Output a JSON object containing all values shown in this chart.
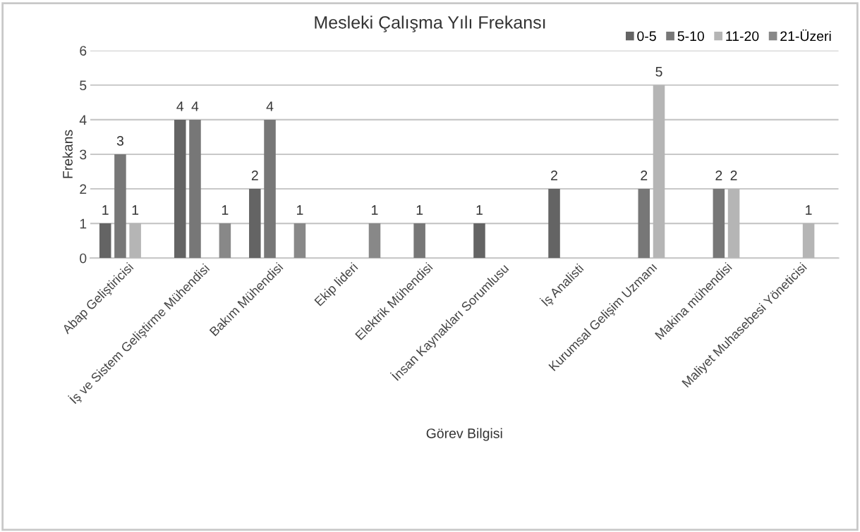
{
  "chart_data": {
    "type": "bar",
    "title": "Mesleki Çalışma Yılı Frekansı",
    "xlabel": "Görev Bilgisi",
    "ylabel": "Frekans",
    "categories": [
      "Abap Geliştiricisi",
      "İş ve Sistem Geliştirme Mühendisi",
      "Bakım Mühendisi",
      "Ekip lideri",
      "Elektrik Mühendisi",
      "İnsan Kaynakları Sorumlusu",
      "İş Analisti",
      "Kurumsal Gelişim Uzmanı",
      "Makina mühendisi",
      "Maliyet Muhasebesi Yöneticisi"
    ],
    "series": [
      {
        "name": "0-5",
        "color": "#646464",
        "values": [
          1,
          4,
          2,
          null,
          null,
          1,
          2,
          null,
          null,
          null
        ]
      },
      {
        "name": "5-10",
        "color": "#777777",
        "values": [
          3,
          4,
          4,
          null,
          1,
          null,
          null,
          2,
          2,
          null
        ]
      },
      {
        "name": "11-20",
        "color": "#b5b5b5",
        "values": [
          1,
          null,
          null,
          null,
          null,
          null,
          null,
          5,
          2,
          1
        ]
      },
      {
        "name": "21-Üzeri",
        "color": "#888888",
        "values": [
          null,
          1,
          1,
          1,
          null,
          null,
          null,
          null,
          null,
          null
        ]
      }
    ],
    "ylim": [
      0,
      6
    ],
    "yticks": [
      0,
      1,
      2,
      3,
      4,
      5,
      6
    ],
    "grid": "y",
    "legend": "top right",
    "data_labels": true
  }
}
